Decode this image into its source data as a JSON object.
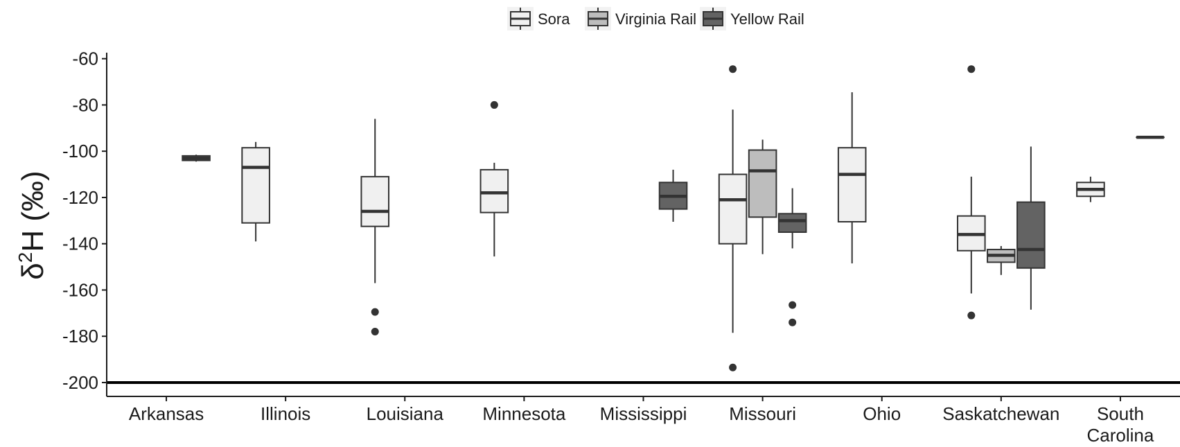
{
  "chart_data": {
    "type": "boxplot",
    "title": "",
    "xlabel": "",
    "ylabel": "δ²H (‰)",
    "ylabel_parts": {
      "base": "δ",
      "sup": "2",
      "rest": "H (‰)"
    },
    "ylim": [
      -206,
      -58
    ],
    "yticks": [
      -60,
      -80,
      -100,
      -120,
      -140,
      -160,
      -180,
      -200
    ],
    "reference_line": -200,
    "grid": false,
    "legend_position": "top",
    "categories": [
      "Arkansas",
      "Illinois",
      "Louisiana",
      "Minnesota",
      "Mississippi",
      "Missouri",
      "Ohio",
      "Saskatchewan",
      "South Carolina"
    ],
    "category_lines": [
      [
        "Arkansas"
      ],
      [
        "Illinois"
      ],
      [
        "Louisiana"
      ],
      [
        "Minnesota"
      ],
      [
        "Mississippi"
      ],
      [
        "Missouri"
      ],
      [
        "Ohio"
      ],
      [
        "Saskatchewan"
      ],
      [
        "South",
        "Carolina"
      ]
    ],
    "series": [
      {
        "name": "Sora",
        "color": "#f0f0f0",
        "boxes": [
          {
            "category": "Illinois",
            "whisker_low": -139,
            "q1": -131,
            "median": -107,
            "q3": -98.5,
            "whisker_high": -96,
            "outliers": []
          },
          {
            "category": "Louisiana",
            "whisker_low": -157,
            "q1": -132.5,
            "median": -126,
            "q3": -111,
            "whisker_high": -86,
            "outliers": [
              -169.5,
              -178
            ]
          },
          {
            "category": "Minnesota",
            "whisker_low": -145.5,
            "q1": -126.5,
            "median": -118,
            "q3": -108,
            "whisker_high": -105,
            "outliers": [
              -80
            ]
          },
          {
            "category": "Missouri",
            "whisker_low": -178.5,
            "q1": -140,
            "median": -121,
            "q3": -110,
            "whisker_high": -82,
            "outliers": [
              -64.5,
              -193.5
            ]
          },
          {
            "category": "Ohio",
            "whisker_low": -148.5,
            "q1": -130.5,
            "median": -110,
            "q3": -98.5,
            "whisker_high": -74.5,
            "outliers": []
          },
          {
            "category": "Saskatchewan",
            "whisker_low": -161.5,
            "q1": -143,
            "median": -136,
            "q3": -128,
            "whisker_high": -111,
            "outliers": [
              -64.5,
              -171
            ]
          },
          {
            "category": "South Carolina",
            "whisker_low": -122,
            "q1": -119.5,
            "median": -116.5,
            "q3": -113.5,
            "whisker_high": -111,
            "outliers": []
          }
        ]
      },
      {
        "name": "Virginia Rail",
        "color": "#bdbdbd",
        "boxes": [
          {
            "category": "Missouri",
            "whisker_low": -144.5,
            "q1": -128.5,
            "median": -108.5,
            "q3": -99.5,
            "whisker_high": -95,
            "outliers": []
          },
          {
            "category": "Saskatchewan",
            "whisker_low": -153.5,
            "q1": -148,
            "median": -145,
            "q3": -142.5,
            "whisker_high": -141,
            "outliers": []
          }
        ]
      },
      {
        "name": "Yellow Rail",
        "color": "#636363",
        "boxes": [
          {
            "category": "Arkansas",
            "whisker_low": -104.5,
            "q1": -104,
            "median": -103,
            "q3": -102,
            "whisker_high": -101.5,
            "outliers": []
          },
          {
            "category": "Mississippi",
            "whisker_low": -130.5,
            "q1": -125,
            "median": -119.5,
            "q3": -113.5,
            "whisker_high": -108,
            "outliers": []
          },
          {
            "category": "Missouri",
            "whisker_low": -142,
            "q1": -135,
            "median": -130,
            "q3": -127,
            "whisker_high": -116,
            "outliers": [
              -166.5,
              -174
            ]
          },
          {
            "category": "Saskatchewan",
            "whisker_low": -168.5,
            "q1": -150.5,
            "median": -142.5,
            "q3": -122,
            "whisker_high": -98,
            "outliers": []
          },
          {
            "category": "South Carolina",
            "whisker_low": -94,
            "q1": -94,
            "median": -94,
            "q3": -94,
            "whisker_high": -94,
            "outliers": []
          }
        ]
      }
    ]
  }
}
